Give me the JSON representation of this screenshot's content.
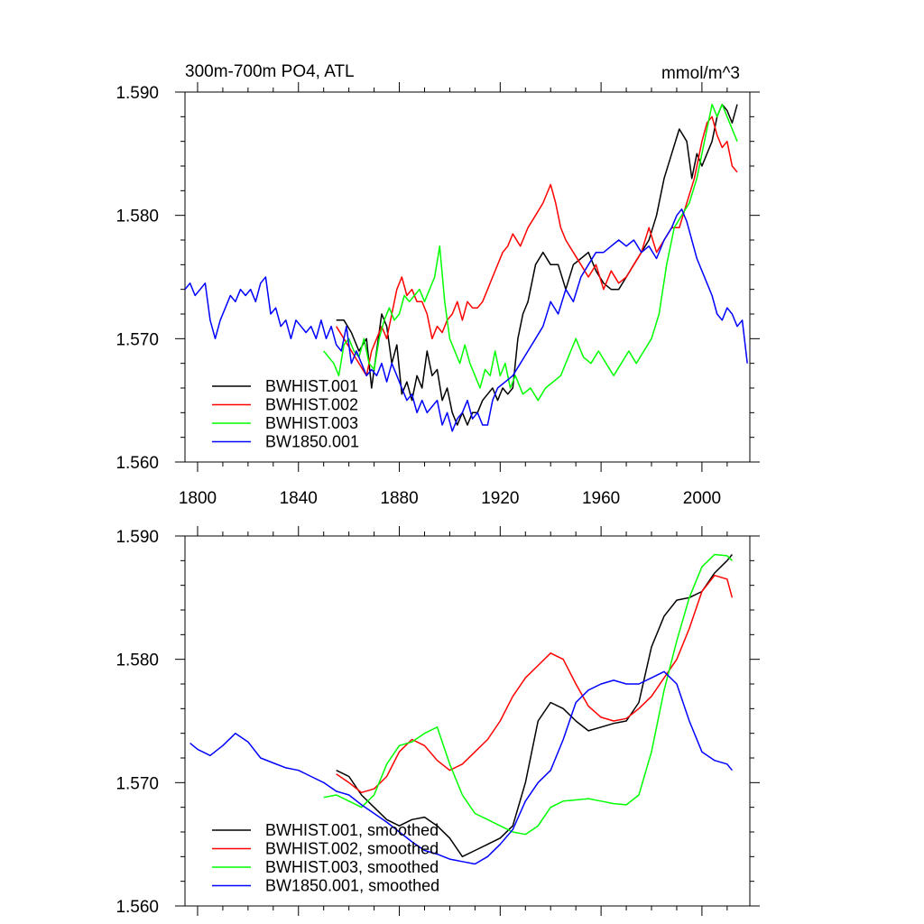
{
  "chart_data": [
    {
      "type": "line",
      "title": "300m-700m PO4, ATL",
      "units": "mmol/m^3",
      "xlim": [
        1795,
        2019
      ],
      "ylim": [
        1.56,
        1.59
      ],
      "xticks": [
        "1800",
        "1840",
        "1880",
        "1920",
        "1960",
        "2000"
      ],
      "yticks": [
        "1.590",
        "1.580",
        "1.570",
        "1.560"
      ],
      "grid": false,
      "legend_position": "bottom-left",
      "series": [
        {
          "name": "BWHIST.001",
          "color": "#000000",
          "x": [
            1855,
            1858,
            1861,
            1864,
            1867,
            1869,
            1871,
            1873,
            1875,
            1877,
            1879,
            1881,
            1883,
            1885,
            1887,
            1889,
            1891,
            1893,
            1895,
            1897,
            1899,
            1901,
            1903,
            1905,
            1907,
            1909,
            1911,
            1913,
            1915,
            1917,
            1919,
            1921,
            1923,
            1925,
            1927,
            1929,
            1931,
            1934,
            1937,
            1940,
            1943,
            1946,
            1949,
            1952,
            1955,
            1958,
            1961,
            1964,
            1967,
            1970,
            1973,
            1976,
            1979,
            1982,
            1985,
            1988,
            1991,
            1994,
            1996,
            1998,
            2000,
            2002,
            2004,
            2006,
            2008,
            2010,
            2012,
            2014
          ],
          "y": [
            1.5715,
            1.5715,
            1.5705,
            1.569,
            1.57,
            1.566,
            1.569,
            1.572,
            1.571,
            1.568,
            1.5695,
            1.5655,
            1.5665,
            1.565,
            1.567,
            1.566,
            1.569,
            1.567,
            1.5675,
            1.565,
            1.566,
            1.564,
            1.563,
            1.564,
            1.563,
            1.564,
            1.564,
            1.565,
            1.5655,
            1.566,
            1.565,
            1.566,
            1.5655,
            1.566,
            1.57,
            1.572,
            1.573,
            1.576,
            1.577,
            1.576,
            1.576,
            1.574,
            1.576,
            1.5765,
            1.577,
            1.5755,
            1.5745,
            1.574,
            1.574,
            1.575,
            1.576,
            1.577,
            1.578,
            1.58,
            1.583,
            1.585,
            1.587,
            1.586,
            1.583,
            1.585,
            1.584,
            1.585,
            1.586,
            1.588,
            1.589,
            1.5885,
            1.5875,
            1.589
          ]
        },
        {
          "name": "BWHIST.002",
          "color": "#ff0000",
          "x": [
            1855,
            1858,
            1861,
            1864,
            1867,
            1869,
            1871,
            1873,
            1875,
            1877,
            1879,
            1881,
            1883,
            1885,
            1887,
            1889,
            1891,
            1893,
            1895,
            1897,
            1899,
            1901,
            1903,
            1905,
            1907,
            1909,
            1911,
            1913,
            1915,
            1917,
            1919,
            1921,
            1923,
            1925,
            1928,
            1931,
            1934,
            1937,
            1940,
            1942,
            1944,
            1946,
            1949,
            1952,
            1955,
            1958,
            1961,
            1964,
            1967,
            1970,
            1973,
            1976,
            1979,
            1982,
            1985,
            1988,
            1991,
            1994,
            1997,
            2000,
            2002,
            2004,
            2006,
            2008,
            2010,
            2012,
            2014
          ],
          "y": [
            1.571,
            1.57,
            1.569,
            1.568,
            1.567,
            1.569,
            1.57,
            1.571,
            1.57,
            1.572,
            1.574,
            1.575,
            1.5735,
            1.574,
            1.573,
            1.573,
            1.572,
            1.57,
            1.571,
            1.5705,
            1.5715,
            1.572,
            1.573,
            1.5715,
            1.573,
            1.5725,
            1.5725,
            1.573,
            1.574,
            1.575,
            1.576,
            1.577,
            1.5775,
            1.5785,
            1.5775,
            1.579,
            1.58,
            1.581,
            1.5825,
            1.581,
            1.579,
            1.578,
            1.577,
            1.576,
            1.575,
            1.576,
            1.574,
            1.5755,
            1.5745,
            1.575,
            1.576,
            1.577,
            1.579,
            1.577,
            1.578,
            1.579,
            1.579,
            1.581,
            1.583,
            1.586,
            1.5875,
            1.588,
            1.5865,
            1.5855,
            1.586,
            1.584,
            1.5835
          ]
        },
        {
          "name": "BWHIST.003",
          "color": "#00ff00",
          "x": [
            1850,
            1852,
            1854,
            1856,
            1858,
            1860,
            1862,
            1864,
            1866,
            1868,
            1870,
            1872,
            1874,
            1876,
            1878,
            1880,
            1882,
            1884,
            1886,
            1888,
            1890,
            1892,
            1894,
            1896,
            1898,
            1900,
            1902,
            1904,
            1906,
            1908,
            1910,
            1912,
            1914,
            1916,
            1918,
            1920,
            1922,
            1924,
            1926,
            1929,
            1932,
            1935,
            1938,
            1941,
            1944,
            1947,
            1950,
            1953,
            1956,
            1959,
            1962,
            1965,
            1968,
            1971,
            1974,
            1977,
            1980,
            1983,
            1986,
            1989,
            1992,
            1995,
            1998,
            2000,
            2002,
            2004,
            2006,
            2008,
            2010,
            2012,
            2014
          ],
          "y": [
            1.569,
            1.5685,
            1.568,
            1.567,
            1.5695,
            1.57,
            1.569,
            1.5685,
            1.57,
            1.568,
            1.5675,
            1.57,
            1.5715,
            1.5725,
            1.5715,
            1.572,
            1.5735,
            1.573,
            1.5735,
            1.574,
            1.573,
            1.574,
            1.575,
            1.5775,
            1.573,
            1.57,
            1.569,
            1.568,
            1.5695,
            1.568,
            1.567,
            1.566,
            1.5675,
            1.567,
            1.569,
            1.567,
            1.568,
            1.566,
            1.567,
            1.5655,
            1.566,
            1.565,
            1.566,
            1.5665,
            1.567,
            1.5685,
            1.57,
            1.5685,
            1.568,
            1.569,
            1.568,
            1.567,
            1.568,
            1.569,
            1.568,
            1.569,
            1.57,
            1.572,
            1.576,
            1.579,
            1.58,
            1.581,
            1.583,
            1.585,
            1.587,
            1.589,
            1.588,
            1.589,
            1.588,
            1.587,
            1.586
          ]
        },
        {
          "name": "BW1850.001",
          "color": "#0000ff",
          "x": [
            1795,
            1797,
            1799,
            1801,
            1803,
            1805,
            1807,
            1809,
            1811,
            1813,
            1815,
            1817,
            1819,
            1821,
            1823,
            1825,
            1827,
            1829,
            1831,
            1833,
            1835,
            1837,
            1839,
            1841,
            1843,
            1845,
            1847,
            1849,
            1851,
            1853,
            1855,
            1857,
            1859,
            1861,
            1863,
            1865,
            1867,
            1869,
            1871,
            1873,
            1875,
            1877,
            1879,
            1881,
            1883,
            1885,
            1887,
            1889,
            1891,
            1893,
            1895,
            1897,
            1899,
            1901,
            1903,
            1905,
            1907,
            1909,
            1911,
            1913,
            1915,
            1917,
            1919,
            1922,
            1925,
            1928,
            1931,
            1934,
            1937,
            1940,
            1943,
            1946,
            1949,
            1952,
            1955,
            1958,
            1961,
            1964,
            1967,
            1970,
            1973,
            1976,
            1979,
            1982,
            1985,
            1988,
            1990,
            1992,
            1994,
            1996,
            1998,
            2000,
            2002,
            2004,
            2006,
            2008,
            2010,
            2012,
            2014,
            2016,
            2018
          ],
          "y": [
            1.574,
            1.5745,
            1.5735,
            1.574,
            1.5745,
            1.5715,
            1.57,
            1.5715,
            1.5725,
            1.5735,
            1.573,
            1.574,
            1.5735,
            1.574,
            1.573,
            1.5745,
            1.575,
            1.572,
            1.5725,
            1.571,
            1.5715,
            1.57,
            1.5715,
            1.571,
            1.5705,
            1.571,
            1.57,
            1.5715,
            1.57,
            1.571,
            1.5695,
            1.569,
            1.571,
            1.568,
            1.569,
            1.568,
            1.567,
            1.5675,
            1.567,
            1.568,
            1.5665,
            1.568,
            1.567,
            1.566,
            1.565,
            1.5655,
            1.564,
            1.565,
            1.564,
            1.5645,
            1.565,
            1.563,
            1.564,
            1.5625,
            1.5635,
            1.564,
            1.565,
            1.5635,
            1.564,
            1.563,
            1.563,
            1.565,
            1.566,
            1.5665,
            1.567,
            1.568,
            1.569,
            1.57,
            1.571,
            1.573,
            1.572,
            1.574,
            1.573,
            1.575,
            1.576,
            1.577,
            1.577,
            1.5775,
            1.578,
            1.5775,
            1.578,
            1.577,
            1.5775,
            1.5765,
            1.578,
            1.579,
            1.58,
            1.5805,
            1.5795,
            1.578,
            1.5765,
            1.5755,
            1.5745,
            1.5735,
            1.572,
            1.5715,
            1.5725,
            1.572,
            1.571,
            1.5715,
            1.568
          ]
        }
      ]
    },
    {
      "type": "line",
      "title": "",
      "xlim": [
        1795,
        2019
      ],
      "ylim": [
        1.56,
        1.59
      ],
      "yticks": [
        "1.590",
        "1.580",
        "1.570",
        "1.560"
      ],
      "grid": false,
      "legend_position": "bottom-left",
      "series": [
        {
          "name": "BWHIST.001, smoothed",
          "color": "#000000",
          "x": [
            1855,
            1860,
            1865,
            1870,
            1875,
            1880,
            1885,
            1890,
            1895,
            1900,
            1905,
            1910,
            1915,
            1920,
            1925,
            1930,
            1935,
            1940,
            1945,
            1950,
            1955,
            1960,
            1965,
            1970,
            1975,
            1980,
            1985,
            1990,
            1995,
            2000,
            2005,
            2010,
            2012
          ],
          "y": [
            1.571,
            1.5705,
            1.569,
            1.568,
            1.567,
            1.5665,
            1.567,
            1.5672,
            1.5665,
            1.5655,
            1.564,
            1.5645,
            1.565,
            1.5655,
            1.5665,
            1.57,
            1.575,
            1.5765,
            1.576,
            1.575,
            1.5742,
            1.5745,
            1.5748,
            1.575,
            1.5765,
            1.581,
            1.5835,
            1.5848,
            1.585,
            1.5855,
            1.587,
            1.588,
            1.5885
          ]
        },
        {
          "name": "BWHIST.002, smoothed",
          "color": "#ff0000",
          "x": [
            1855,
            1860,
            1865,
            1870,
            1875,
            1880,
            1885,
            1890,
            1895,
            1900,
            1905,
            1910,
            1915,
            1920,
            1925,
            1930,
            1935,
            1940,
            1945,
            1950,
            1955,
            1960,
            1965,
            1970,
            1975,
            1980,
            1985,
            1990,
            1995,
            2000,
            2005,
            2010,
            2012
          ],
          "y": [
            1.5707,
            1.57,
            1.5692,
            1.5695,
            1.5705,
            1.5725,
            1.5735,
            1.573,
            1.5718,
            1.571,
            1.5715,
            1.5725,
            1.5735,
            1.575,
            1.577,
            1.5785,
            1.5795,
            1.5805,
            1.58,
            1.578,
            1.5762,
            1.5753,
            1.575,
            1.5752,
            1.576,
            1.577,
            1.5785,
            1.58,
            1.5825,
            1.5855,
            1.5868,
            1.5865,
            1.585
          ]
        },
        {
          "name": "BWHIST.003, smoothed",
          "color": "#00ff00",
          "x": [
            1850,
            1855,
            1860,
            1865,
            1870,
            1875,
            1880,
            1885,
            1890,
            1895,
            1900,
            1905,
            1910,
            1915,
            1920,
            1925,
            1930,
            1935,
            1940,
            1945,
            1950,
            1955,
            1960,
            1965,
            1970,
            1975,
            1980,
            1985,
            1990,
            1995,
            2000,
            2005,
            2010,
            2012
          ],
          "y": [
            1.5688,
            1.569,
            1.5685,
            1.568,
            1.569,
            1.5715,
            1.573,
            1.5733,
            1.574,
            1.5745,
            1.5715,
            1.569,
            1.5675,
            1.567,
            1.5665,
            1.566,
            1.5658,
            1.5665,
            1.568,
            1.5685,
            1.5686,
            1.5687,
            1.5685,
            1.5683,
            1.5682,
            1.569,
            1.5725,
            1.5775,
            1.5815,
            1.585,
            1.5875,
            1.5885,
            1.5884,
            1.588
          ]
        },
        {
          "name": "BW1850.001, smoothed",
          "color": "#0000ff",
          "x": [
            1797,
            1800,
            1805,
            1810,
            1815,
            1820,
            1825,
            1830,
            1835,
            1840,
            1845,
            1850,
            1855,
            1860,
            1865,
            1870,
            1875,
            1880,
            1885,
            1890,
            1895,
            1900,
            1905,
            1910,
            1915,
            1920,
            1925,
            1930,
            1935,
            1940,
            1945,
            1950,
            1955,
            1960,
            1965,
            1970,
            1975,
            1980,
            1985,
            1990,
            1995,
            2000,
            2005,
            2010,
            2012
          ],
          "y": [
            1.5732,
            1.5727,
            1.5722,
            1.573,
            1.574,
            1.5733,
            1.572,
            1.5716,
            1.5712,
            1.571,
            1.5705,
            1.57,
            1.5693,
            1.569,
            1.5682,
            1.5675,
            1.5668,
            1.566,
            1.5652,
            1.5645,
            1.5642,
            1.5638,
            1.5636,
            1.5634,
            1.564,
            1.565,
            1.5662,
            1.5685,
            1.57,
            1.571,
            1.5735,
            1.5765,
            1.5775,
            1.578,
            1.5783,
            1.578,
            1.578,
            1.5785,
            1.579,
            1.578,
            1.575,
            1.5725,
            1.5718,
            1.5715,
            1.571
          ]
        }
      ]
    }
  ]
}
